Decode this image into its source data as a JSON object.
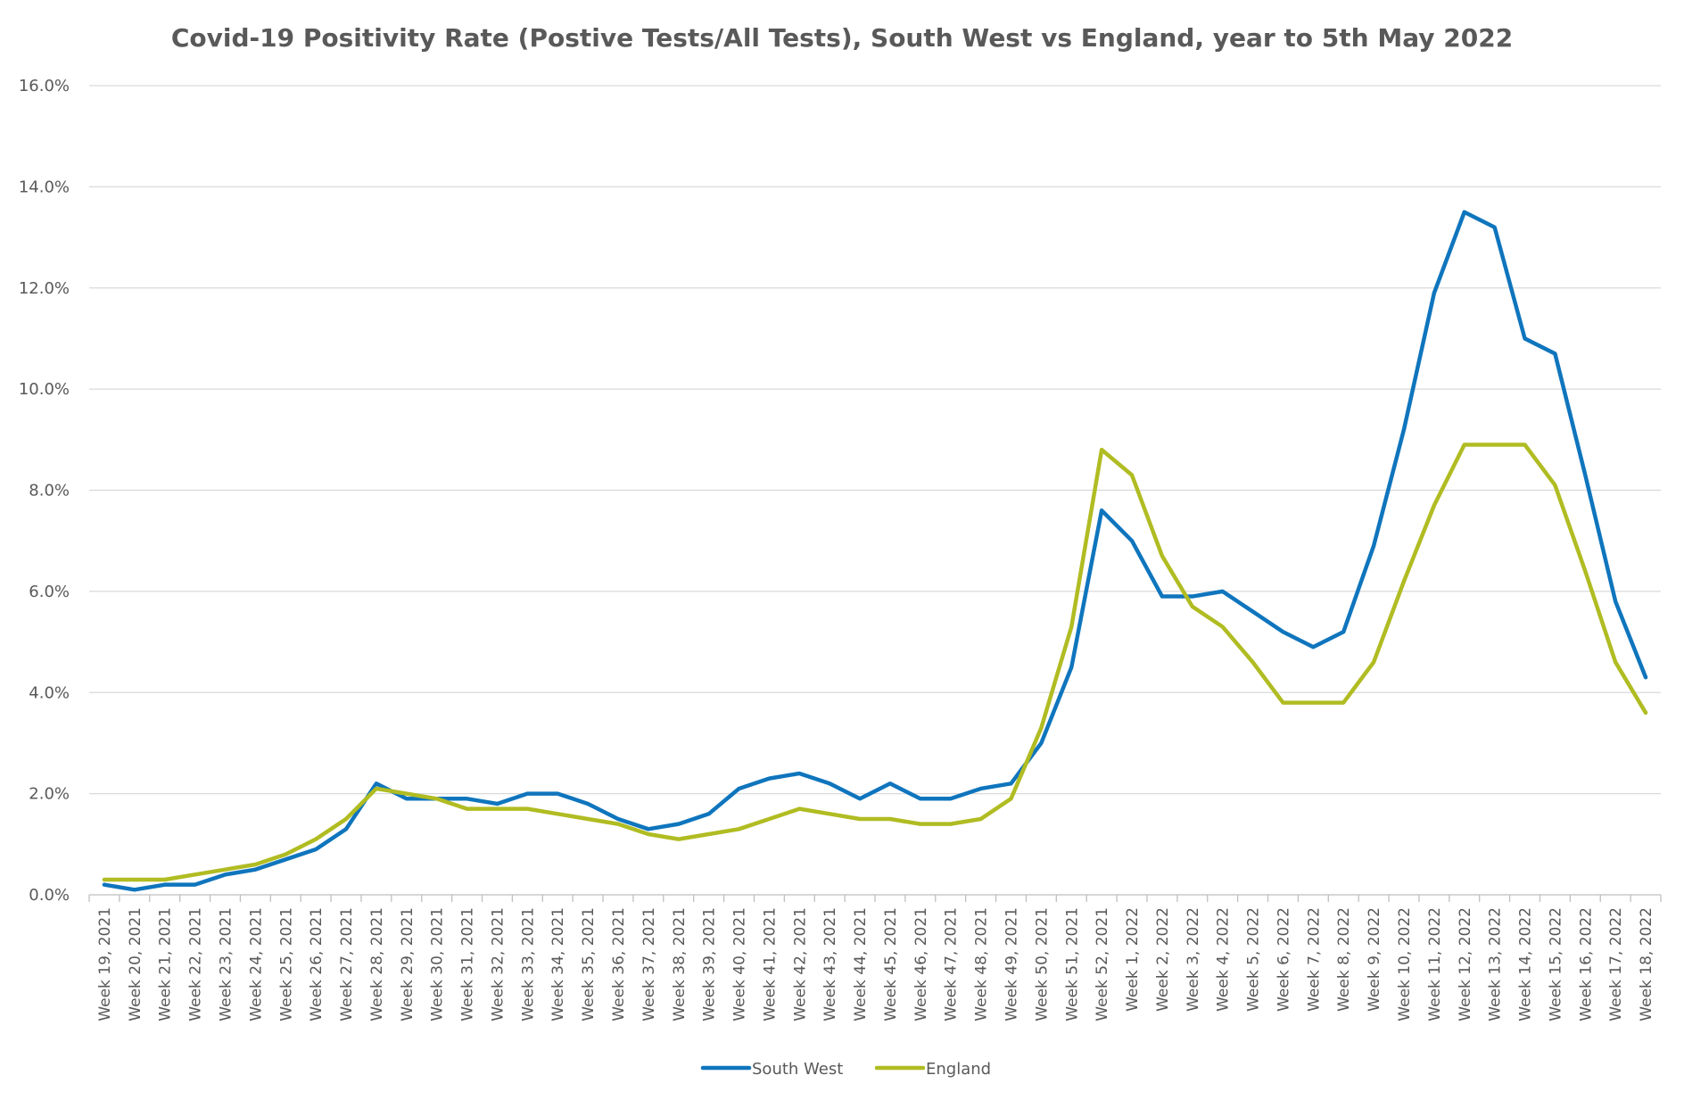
{
  "chart_data": {
    "type": "line",
    "title": "Covid-19 Positivity Rate (Postive Tests/All Tests), South West vs England, year to 5th May 2022",
    "xlabel": "",
    "ylabel": "",
    "ylim": [
      0,
      0.16
    ],
    "y_ticks": [
      0,
      0.02,
      0.04,
      0.06,
      0.08,
      0.1,
      0.12,
      0.14,
      0.16
    ],
    "y_tick_labels": [
      "0.0%",
      "2.0%",
      "4.0%",
      "6.0%",
      "8.0%",
      "10.0%",
      "12.0%",
      "14.0%",
      "16.0%"
    ],
    "grid": true,
    "legend_position": "bottom",
    "categories": [
      "Week 19, 2021",
      "Week 20, 2021",
      "Week 21, 2021",
      "Week 22, 2021",
      "Week 23, 2021",
      "Week 24, 2021",
      "Week 25, 2021",
      "Week 26, 2021",
      "Week 27, 2021",
      "Week 28, 2021",
      "Week 29, 2021",
      "Week 30, 2021",
      "Week 31, 2021",
      "Week 32, 2021",
      "Week 33, 2021",
      "Week 34, 2021",
      "Week 35, 2021",
      "Week 36, 2021",
      "Week 37, 2021",
      "Week 38, 2021",
      "Week 39, 2021",
      "Week 40, 2021",
      "Week 41, 2021",
      "Week 42, 2021",
      "Week 43, 2021",
      "Week 44, 2021",
      "Week 45, 2021",
      "Week 46, 2021",
      "Week 47, 2021",
      "Week 48, 2021",
      "Week 49, 2021",
      "Week 50, 2021",
      "Week 51, 2021",
      "Week 52, 2021",
      "Week 1, 2022",
      "Week 2, 2022",
      "Week 3, 2022",
      "Week 4, 2022",
      "Week 5, 2022",
      "Week 6, 2022",
      "Week 7, 2022",
      "Week 8, 2022",
      "Week 9, 2022",
      "Week 10, 2022",
      "Week 11, 2022",
      "Week 12, 2022",
      "Week 13, 2022",
      "Week 14, 2022",
      "Week 15, 2022",
      "Week 16, 2022",
      "Week 17, 2022",
      "Week 18, 2022"
    ],
    "series": [
      {
        "name": "South West",
        "color": "#0f75bd",
        "values": [
          0.002,
          0.001,
          0.002,
          0.002,
          0.004,
          0.005,
          0.007,
          0.009,
          0.013,
          0.022,
          0.019,
          0.019,
          0.019,
          0.018,
          0.02,
          0.02,
          0.018,
          0.015,
          0.013,
          0.014,
          0.016,
          0.021,
          0.023,
          0.024,
          0.022,
          0.019,
          0.022,
          0.019,
          0.019,
          0.021,
          0.022,
          0.03,
          0.045,
          0.076,
          0.07,
          0.059,
          0.059,
          0.06,
          0.056,
          0.052,
          0.049,
          0.052,
          0.069,
          0.092,
          0.119,
          0.135,
          0.132,
          0.11,
          0.107,
          0.083,
          0.058,
          0.043
        ]
      },
      {
        "name": "England",
        "color": "#b0bc22",
        "values": [
          0.003,
          0.003,
          0.003,
          0.004,
          0.005,
          0.006,
          0.008,
          0.011,
          0.015,
          0.021,
          0.02,
          0.019,
          0.017,
          0.017,
          0.017,
          0.016,
          0.015,
          0.014,
          0.012,
          0.011,
          0.012,
          0.013,
          0.015,
          0.017,
          0.016,
          0.015,
          0.015,
          0.014,
          0.014,
          0.015,
          0.019,
          0.033,
          0.053,
          0.088,
          0.083,
          0.067,
          0.057,
          0.053,
          0.046,
          0.038,
          0.038,
          0.038,
          0.046,
          0.062,
          0.077,
          0.089,
          0.089,
          0.089,
          0.081,
          0.064,
          0.046,
          0.036
        ]
      }
    ]
  }
}
